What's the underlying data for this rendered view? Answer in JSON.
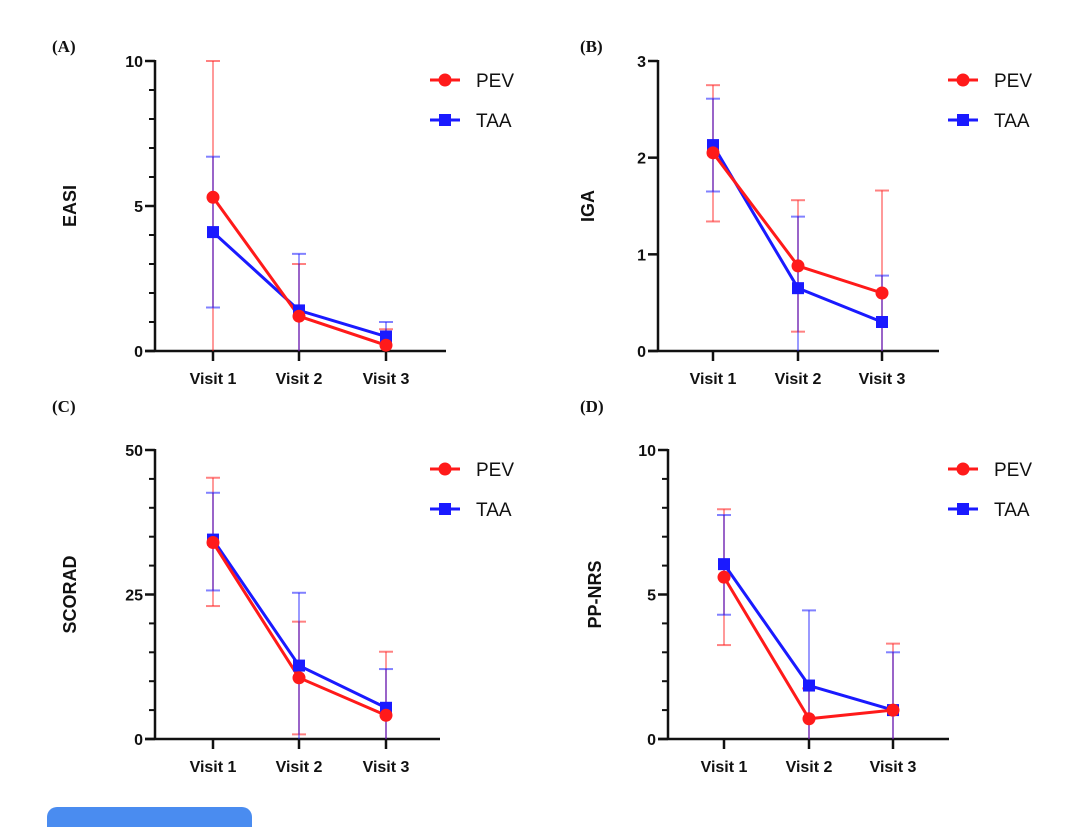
{
  "chart_data": [
    {
      "panel": "(A)",
      "type": "line",
      "ylabel": "EASI",
      "xlabel": "",
      "categories": [
        "Visit 1",
        "Visit 2",
        "Visit 3"
      ],
      "ylim": [
        0,
        10
      ],
      "yticks": [
        0,
        5,
        10
      ],
      "minor_tick_step": 1,
      "legend": "top-right",
      "series": [
        {
          "name": "PEV",
          "color": "#ff1a1a",
          "marker": "circle",
          "values": [
            5.3,
            1.2,
            0.2
          ],
          "err_upper": [
            10.0,
            3.0,
            0.75
          ],
          "err_lower": [
            0.0,
            0.0,
            0.0
          ]
        },
        {
          "name": "TAA",
          "color": "#1a1aff",
          "marker": "square",
          "values": [
            4.1,
            1.4,
            0.5
          ],
          "err_upper": [
            6.7,
            3.35,
            1.0
          ],
          "err_lower": [
            1.5,
            0.0,
            0.0
          ]
        }
      ]
    },
    {
      "panel": "(B)",
      "type": "line",
      "ylabel": "IGA",
      "xlabel": "",
      "categories": [
        "Visit 1",
        "Visit 2",
        "Visit 3"
      ],
      "ylim": [
        0,
        3
      ],
      "yticks": [
        0,
        1,
        2,
        3
      ],
      "minor_tick_step": null,
      "legend": "top-right",
      "series": [
        {
          "name": "PEV",
          "color": "#ff1a1a",
          "marker": "circle",
          "values": [
            2.05,
            0.88,
            0.6
          ],
          "err_upper": [
            2.75,
            1.56,
            1.66
          ],
          "err_lower": [
            1.34,
            0.2,
            0.0
          ]
        },
        {
          "name": "TAA",
          "color": "#1a1aff",
          "marker": "square",
          "values": [
            2.13,
            0.65,
            0.3
          ],
          "err_upper": [
            2.61,
            1.39,
            0.78
          ],
          "err_lower": [
            1.65,
            0.0,
            0.0
          ]
        }
      ]
    },
    {
      "panel": "(C)",
      "type": "line",
      "ylabel": "SCORAD",
      "xlabel": "",
      "categories": [
        "Visit 1",
        "Visit 2",
        "Visit 3"
      ],
      "ylim": [
        0,
        50
      ],
      "yticks": [
        0,
        25,
        50
      ],
      "minor_tick_step": 5,
      "legend": "top-right",
      "series": [
        {
          "name": "PEV",
          "color": "#ff1a1a",
          "marker": "circle",
          "values": [
            34.0,
            10.6,
            4.1
          ],
          "err_upper": [
            45.2,
            20.3,
            15.1
          ],
          "err_lower": [
            23.0,
            0.8,
            0.0
          ]
        },
        {
          "name": "TAA",
          "color": "#1a1aff",
          "marker": "square",
          "values": [
            34.5,
            12.7,
            5.4
          ],
          "err_upper": [
            42.6,
            25.3,
            12.1
          ],
          "err_lower": [
            25.7,
            0.0,
            0.0
          ]
        }
      ]
    },
    {
      "panel": "(D)",
      "type": "line",
      "ylabel": "PP-NRS",
      "xlabel": "",
      "categories": [
        "Visit 1",
        "Visit 2",
        "Visit 3"
      ],
      "ylim": [
        0,
        10
      ],
      "yticks": [
        0,
        5,
        10
      ],
      "minor_tick_step": 1,
      "legend": "top-right",
      "series": [
        {
          "name": "PEV",
          "color": "#ff1a1a",
          "marker": "circle",
          "values": [
            5.6,
            0.7,
            1.0
          ],
          "err_upper": [
            7.95,
            1.75,
            3.3
          ],
          "err_lower": [
            3.25,
            0.0,
            0.0
          ]
        },
        {
          "name": "TAA",
          "color": "#1a1aff",
          "marker": "square",
          "values": [
            6.05,
            1.85,
            1.0
          ],
          "err_upper": [
            7.75,
            4.45,
            3.0
          ],
          "err_lower": [
            4.3,
            0.0,
            0.0
          ]
        }
      ]
    }
  ],
  "legend_labels": {
    "pev": "PEV",
    "taa": "TAA"
  },
  "bottom_button": {
    "label": ""
  }
}
